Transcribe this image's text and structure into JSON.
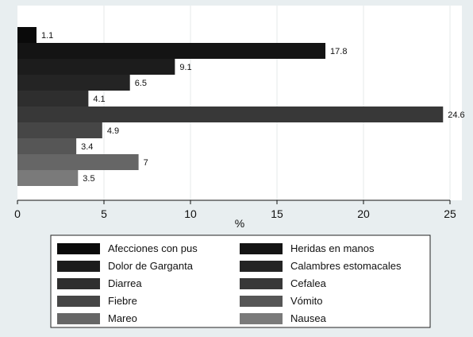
{
  "chart_data": {
    "type": "bar",
    "orientation": "horizontal",
    "xlabel": "%",
    "xlim": [
      0,
      25
    ],
    "xticks": [
      0,
      5,
      10,
      15,
      20,
      25
    ],
    "grid": true,
    "legend_position": "bottom",
    "series": [
      {
        "name": "Afecciones con pus",
        "value": 1.1,
        "label": "1.1",
        "color": "#0a0a0a"
      },
      {
        "name": "Heridas en manos",
        "value": 17.8,
        "label": "17.8",
        "color": "#141414"
      },
      {
        "name": "Dolor de Garganta",
        "value": 9.1,
        "label": "9.1",
        "color": "#1c1c1c"
      },
      {
        "name": "Calambres estomacales",
        "value": 6.5,
        "label": "6.5",
        "color": "#242424"
      },
      {
        "name": "Diarrea",
        "value": 4.1,
        "label": "4.1",
        "color": "#2e2e2e"
      },
      {
        "name": "Cefalea",
        "value": 24.6,
        "label": "24.6",
        "color": "#383838"
      },
      {
        "name": "Fiebre",
        "value": 4.9,
        "label": "4.9",
        "color": "#464646"
      },
      {
        "name": "Vómito",
        "value": 3.4,
        "label": "3.4",
        "color": "#565656"
      },
      {
        "name": "Mareo",
        "value": 7,
        "label": "7",
        "color": "#666666"
      },
      {
        "name": "Nausea",
        "value": 3.5,
        "label": "3.5",
        "color": "#7a7a7a"
      }
    ]
  }
}
